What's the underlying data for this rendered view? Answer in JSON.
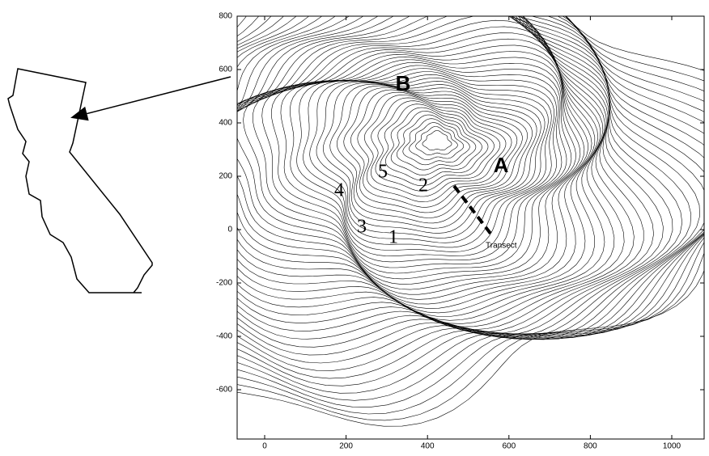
{
  "plot": {
    "xticks": [
      0,
      200,
      400,
      600,
      800,
      1000
    ],
    "yticks": [
      -600,
      -400,
      -200,
      0,
      200,
      400,
      600,
      800
    ]
  },
  "labels": {
    "B": "B",
    "A": "A",
    "n1": "1",
    "n2": "2",
    "n3": "3",
    "n4": "4",
    "n5": "5",
    "transect": "Transect"
  }
}
